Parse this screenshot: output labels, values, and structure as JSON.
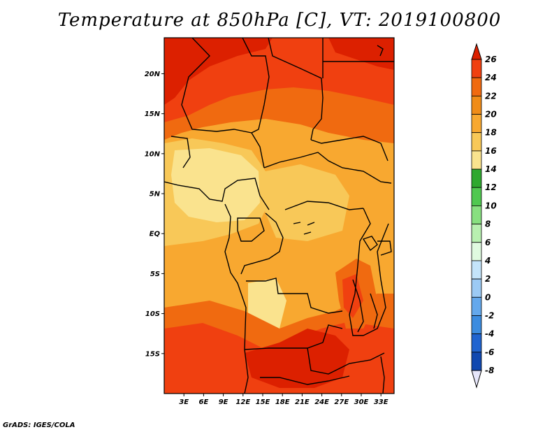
{
  "title": "Temperature at 850hPa [C], VT: 2019100800",
  "credit": "GrADS: IGES/COLA",
  "map": {
    "lat_labels": [
      "20N",
      "15N",
      "10N",
      "5N",
      "EQ",
      "5S",
      "10S",
      "15S"
    ],
    "lon_labels": [
      "3E",
      "6E",
      "9E",
      "12E",
      "15E",
      "18E",
      "21E",
      "24E",
      "27E",
      "30E",
      "33E"
    ],
    "lat_values": [
      20,
      15,
      10,
      5,
      0,
      -5,
      -10,
      -15
    ],
    "lon_values": [
      3,
      6,
      9,
      12,
      15,
      18,
      21,
      24,
      27,
      30,
      33
    ],
    "lat_range": [
      -20,
      24.5
    ],
    "lon_range": [
      0,
      35
    ]
  },
  "colorbar": {
    "labels": [
      "26",
      "24",
      "22",
      "20",
      "18",
      "16",
      "14",
      "12",
      "10",
      "8",
      "6",
      "4",
      "2",
      "0",
      "-2",
      "-4",
      "-6",
      "-8"
    ],
    "levels": [
      26,
      24,
      22,
      20,
      18,
      16,
      14,
      12,
      10,
      8,
      6,
      4,
      2,
      0,
      -2,
      -4,
      -6,
      -8
    ],
    "colors": [
      "#dc2000",
      "#f04010",
      "#f06a10",
      "#f08c18",
      "#f8a830",
      "#f8c858",
      "#fae38e",
      "#2fa82f",
      "#50c850",
      "#88e080",
      "#b8f0b0",
      "#e0fae0",
      "#c4e4fa",
      "#9ccaf4",
      "#64a8ec",
      "#3c8ce0",
      "#2064d0",
      "#1048b0",
      "#0c2c8c",
      "#0c1260"
    ],
    "over_color": "#dc2000",
    "under_color": "#e6e6fa"
  },
  "colors": {
    "very_hot": "#dc2000",
    "hot": "#f04010",
    "warm_orange": "#f06a10",
    "orange": "#f08c18",
    "light_orange": "#f8a830",
    "yellow_orange": "#f8c858",
    "pale_yellow": "#fae38e",
    "border": "#000000"
  }
}
